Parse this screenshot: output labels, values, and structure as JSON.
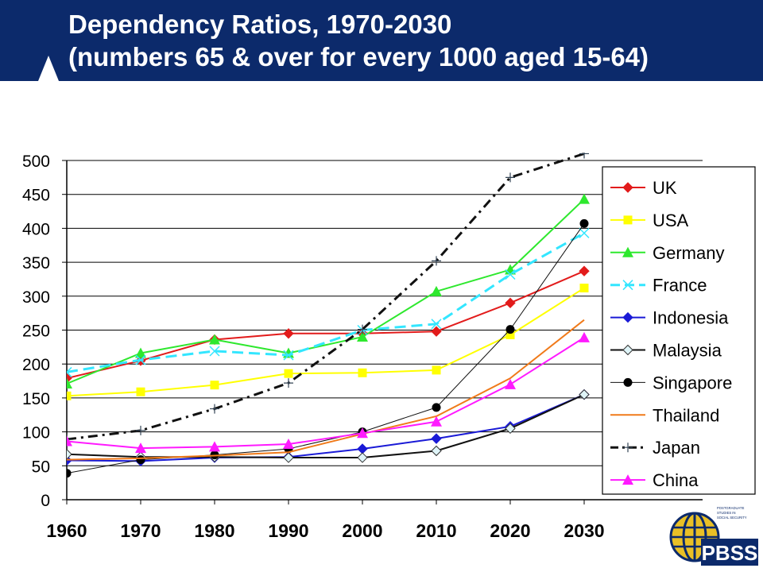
{
  "header": {
    "title_line1": "Dependency Ratios, 1970-2030",
    "title_line2": "(numbers 65 & over for every 1000 aged 15-64)"
  },
  "logo": {
    "icon": "globe-icon",
    "text": "PBSS",
    "tagline": [
      "POSTGRADUATE",
      "STUDIES IN",
      "SOCIAL SECURITY"
    ]
  },
  "chart_data": {
    "type": "line",
    "title": "Dependency Ratios, 1970-2030",
    "subtitle": "(numbers 65 & over for every 1000 aged 15-64)",
    "xlabel": "",
    "ylabel": "",
    "x": [
      1960,
      1970,
      1980,
      1990,
      2000,
      2010,
      2020,
      2030
    ],
    "x_tick_labels": [
      "1960",
      "1970",
      "1980",
      "1990",
      "2000",
      "2010",
      "2020",
      "2030"
    ],
    "y_ticks": [
      0,
      50,
      100,
      150,
      200,
      250,
      300,
      350,
      400,
      450,
      500
    ],
    "ylim": [
      0,
      500
    ],
    "grid": true,
    "legend_position": "right",
    "series": [
      {
        "name": "UK",
        "color": "#e21b1b",
        "marker": "diamond",
        "dash": "solid",
        "width": 2,
        "values": [
          179,
          205,
          236,
          245,
          245,
          248,
          290,
          337
        ]
      },
      {
        "name": "USA",
        "color": "#ffff00",
        "marker": "square",
        "dash": "solid",
        "width": 2,
        "values": [
          153,
          159,
          169,
          186,
          187,
          191,
          243,
          312
        ]
      },
      {
        "name": "Germany",
        "color": "#2ee82e",
        "marker": "triangle",
        "dash": "solid",
        "width": 2,
        "values": [
          171,
          216,
          236,
          216,
          240,
          307,
          339,
          443
        ]
      },
      {
        "name": "France",
        "color": "#33e6ff",
        "marker": "x",
        "dash": "dashed",
        "width": 3,
        "values": [
          188,
          206,
          219,
          213,
          250,
          259,
          332,
          393
        ]
      },
      {
        "name": "Indonesia",
        "color": "#1a1ad6",
        "marker": "diamond",
        "dash": "solid",
        "width": 2,
        "values": [
          58,
          57,
          62,
          63,
          75,
          90,
          108,
          155
        ]
      },
      {
        "name": "Malaysia",
        "color": "#111111",
        "marker": "open-diamond",
        "dash": "solid",
        "width": 2,
        "values": [
          67,
          63,
          63,
          62,
          62,
          72,
          105,
          155
        ]
      },
      {
        "name": "Singapore",
        "color": "#111111",
        "marker": "circle",
        "dash": "thin",
        "width": 1,
        "values": [
          39,
          59,
          66,
          75,
          100,
          136,
          251,
          407
        ]
      },
      {
        "name": "Thailand",
        "color": "#f07a1a",
        "marker": "none",
        "dash": "solid",
        "width": 2,
        "values": [
          59,
          61,
          65,
          70,
          97,
          123,
          179,
          265
        ]
      },
      {
        "name": "Japan",
        "color": "#111111",
        "marker": "plus",
        "dash": "dashdot",
        "width": 3,
        "values": [
          89,
          102,
          134,
          172,
          251,
          352,
          475,
          510
        ]
      },
      {
        "name": "China",
        "color": "#ff1aff",
        "marker": "triangle",
        "dash": "solid",
        "width": 2,
        "values": [
          86,
          76,
          78,
          82,
          98,
          115,
          170,
          239
        ]
      }
    ]
  }
}
